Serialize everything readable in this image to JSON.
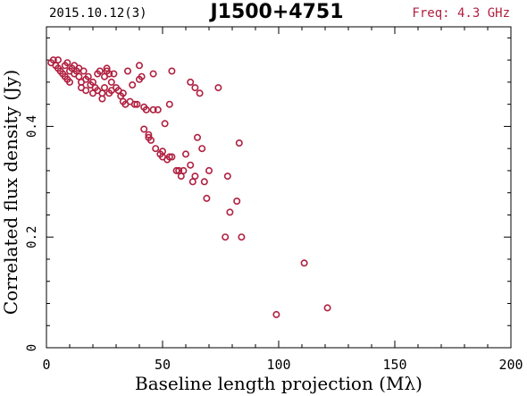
{
  "header": {
    "date_label": "2015.10.12(3)",
    "source_name": "J1500+4751",
    "freq_label": "Freq: 4.3 GHz"
  },
  "colors": {
    "marker": "#b02040",
    "freq_text": "#b02040",
    "axis": "#000000",
    "background": "#ffffff"
  },
  "chart_data": {
    "type": "scatter",
    "xlabel": "Baseline length projection (Mλ)",
    "ylabel": "Correlated flux density (Jy)",
    "xlim": [
      0,
      200
    ],
    "ylim": [
      0,
      0.58
    ],
    "x_ticks": [
      0,
      50,
      100,
      150,
      200
    ],
    "y_ticks": [
      0,
      0.2,
      0.4
    ],
    "y_tick_labels": [
      "0",
      "0.2",
      "0.4"
    ],
    "x_tick_labels": [
      "0",
      "50",
      "100",
      "150",
      "200"
    ],
    "grid": false,
    "marker": "open-circle",
    "series": [
      {
        "points": [
          [
            2,
            0.515
          ],
          [
            3,
            0.52
          ],
          [
            4,
            0.51
          ],
          [
            5,
            0.505
          ],
          [
            5,
            0.52
          ],
          [
            6,
            0.5
          ],
          [
            7,
            0.495
          ],
          [
            8,
            0.49
          ],
          [
            8,
            0.51
          ],
          [
            9,
            0.515
          ],
          [
            9,
            0.485
          ],
          [
            10,
            0.48
          ],
          [
            10,
            0.5
          ],
          [
            11,
            0.505
          ],
          [
            12,
            0.495
          ],
          [
            12,
            0.51
          ],
          [
            13,
            0.5
          ],
          [
            14,
            0.49
          ],
          [
            14,
            0.505
          ],
          [
            15,
            0.48
          ],
          [
            15,
            0.47
          ],
          [
            16,
            0.5
          ],
          [
            17,
            0.465
          ],
          [
            17,
            0.485
          ],
          [
            18,
            0.49
          ],
          [
            19,
            0.475
          ],
          [
            20,
            0.46
          ],
          [
            20,
            0.48
          ],
          [
            21,
            0.47
          ],
          [
            22,
            0.465
          ],
          [
            22,
            0.495
          ],
          [
            23,
            0.5
          ],
          [
            24,
            0.46
          ],
          [
            24,
            0.45
          ],
          [
            25,
            0.47
          ],
          [
            25,
            0.49
          ],
          [
            26,
            0.5
          ],
          [
            26,
            0.505
          ],
          [
            27,
            0.495
          ],
          [
            27,
            0.46
          ],
          [
            28,
            0.465
          ],
          [
            28,
            0.48
          ],
          [
            29,
            0.495
          ],
          [
            30,
            0.47
          ],
          [
            31,
            0.465
          ],
          [
            32,
            0.455
          ],
          [
            33,
            0.445
          ],
          [
            33,
            0.46
          ],
          [
            34,
            0.44
          ],
          [
            35,
            0.5
          ],
          [
            36,
            0.445
          ],
          [
            37,
            0.475
          ],
          [
            38,
            0.44
          ],
          [
            39,
            0.44
          ],
          [
            40,
            0.485
          ],
          [
            40,
            0.51
          ],
          [
            41,
            0.49
          ],
          [
            42,
            0.435
          ],
          [
            42,
            0.395
          ],
          [
            43,
            0.43
          ],
          [
            44,
            0.38
          ],
          [
            44,
            0.385
          ],
          [
            45,
            0.375
          ],
          [
            46,
            0.495
          ],
          [
            46,
            0.43
          ],
          [
            47,
            0.36
          ],
          [
            48,
            0.43
          ],
          [
            49,
            0.35
          ],
          [
            50,
            0.345
          ],
          [
            50,
            0.355
          ],
          [
            51,
            0.405
          ],
          [
            52,
            0.34
          ],
          [
            53,
            0.345
          ],
          [
            53,
            0.44
          ],
          [
            54,
            0.345
          ],
          [
            54,
            0.5
          ],
          [
            56,
            0.32
          ],
          [
            57,
            0.32
          ],
          [
            58,
            0.31
          ],
          [
            59,
            0.32
          ],
          [
            60,
            0.35
          ],
          [
            62,
            0.33
          ],
          [
            62,
            0.48
          ],
          [
            63,
            0.3
          ],
          [
            64,
            0.31
          ],
          [
            64,
            0.47
          ],
          [
            65,
            0.38
          ],
          [
            66,
            0.46
          ],
          [
            67,
            0.36
          ],
          [
            68,
            0.3
          ],
          [
            69,
            0.27
          ],
          [
            70,
            0.32
          ],
          [
            74,
            0.47
          ],
          [
            77,
            0.2
          ],
          [
            78,
            0.31
          ],
          [
            79,
            0.245
          ],
          [
            82,
            0.265
          ],
          [
            83,
            0.37
          ],
          [
            84,
            0.2
          ],
          [
            99,
            0.06
          ],
          [
            111,
            0.153
          ],
          [
            121,
            0.072
          ]
        ]
      }
    ]
  }
}
